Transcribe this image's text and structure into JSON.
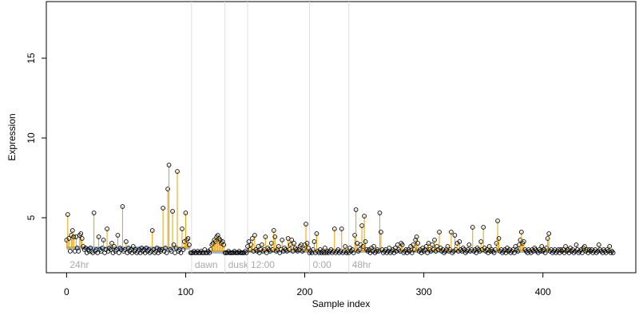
{
  "chart_data": {
    "type": "scatter",
    "x_label": "Sample index",
    "y_label": "Expression",
    "xlim": [
      -17,
      478
    ],
    "xticks": [
      0,
      100,
      200,
      300,
      400
    ],
    "ylim": [
      1.55,
      18.55
    ],
    "yticks": [
      5,
      10,
      15
    ],
    "color": "#000000",
    "stem_color": "#e69f00",
    "baseline_color": "#9ab7e0",
    "separator_color": "#dddddd",
    "regions": [
      {
        "start": 0,
        "label": "24hr"
      },
      {
        "start": 105,
        "label": "dawn"
      },
      {
        "start": 133,
        "label": "dusk"
      },
      {
        "start": 152,
        "label": "12:00"
      },
      {
        "start": 204,
        "label": "0:00"
      },
      {
        "start": 237,
        "label": "48hr"
      }
    ],
    "baselines": [
      {
        "start": 0,
        "end": 104,
        "value": 3.1
      },
      {
        "start": 105,
        "end": 132,
        "value": 2.85
      },
      {
        "start": 133,
        "end": 151,
        "value": 2.85
      },
      {
        "start": 152,
        "end": 203,
        "value": 2.9
      },
      {
        "start": 204,
        "end": 236,
        "value": 2.85
      },
      {
        "start": 237,
        "end": 459,
        "value": 2.9
      }
    ],
    "values": [
      3.6,
      5.2,
      3.7,
      2.9,
      3.9,
      4.2,
      3.8,
      2.9,
      3.8,
      3.1,
      2.9,
      3.9,
      4.0,
      3.7,
      3.2,
      3.0,
      3.1,
      2.8,
      3.0,
      2.9,
      3.1,
      2.9,
      2.8,
      5.3,
      2.9,
      3.0,
      2.8,
      3.8,
      3.0,
      2.9,
      3.1,
      3.6,
      2.8,
      3.0,
      4.3,
      2.9,
      3.1,
      3.0,
      3.4,
      2.8,
      3.2,
      2.9,
      3.0,
      3.9,
      2.8,
      3.1,
      3.0,
      5.7,
      2.9,
      3.0,
      3.5,
      2.8,
      3.1,
      2.9,
      3.0,
      2.8,
      3.2,
      2.9,
      3.0,
      2.8,
      2.9,
      3.0,
      2.8,
      3.1,
      2.9,
      3.0,
      2.8,
      3.1,
      2.9,
      3.0,
      2.8,
      2.9,
      4.2,
      3.0,
      2.8,
      2.9,
      3.1,
      2.8,
      3.0,
      2.9,
      3.0,
      5.6,
      2.9,
      3.1,
      2.8,
      6.8,
      8.3,
      3.0,
      2.9,
      5.4,
      3.3,
      2.8,
      3.1,
      7.9,
      2.9,
      3.0,
      2.8,
      4.3,
      3.0,
      3.5,
      5.3,
      3.6,
      3.7,
      3.3,
      2.8,
      2.8,
      2.8,
      2.9,
      2.8,
      2.8,
      2.9,
      2.8,
      2.8,
      2.9,
      2.8,
      2.8,
      3.0,
      2.8,
      2.8,
      2.9,
      2.8,
      3.0,
      3.3,
      3.4,
      3.6,
      3.5,
      3.8,
      3.9,
      3.7,
      3.6,
      3.4,
      3.5,
      3.3,
      2.8,
      2.8,
      2.8,
      2.9,
      2.8,
      2.8,
      2.8,
      2.8,
      2.9,
      2.8,
      2.8,
      2.8,
      2.9,
      2.8,
      2.8,
      2.8,
      2.8,
      2.9,
      2.8,
      3.2,
      3.5,
      3.0,
      3.3,
      3.7,
      2.9,
      3.9,
      3.0,
      2.9,
      3.2,
      2.8,
      3.0,
      3.3,
      2.9,
      3.0,
      3.8,
      2.8,
      3.1,
      3.0,
      2.9,
      3.4,
      3.0,
      4.2,
      3.8,
      2.9,
      3.0,
      3.2,
      2.8,
      3.0,
      3.6,
      2.9,
      3.1,
      3.0,
      2.9,
      3.7,
      3.0,
      3.3,
      3.6,
      2.9,
      3.4,
      3.1,
      3.0,
      2.9,
      3.0,
      3.2,
      3.3,
      2.9,
      3.0,
      3.3,
      4.6,
      3.4,
      3.1,
      2.8,
      2.9,
      2.8,
      3.0,
      3.5,
      2.8,
      4.0,
      2.9,
      2.8,
      3.0,
      2.8,
      2.9,
      2.8,
      3.1,
      2.8,
      2.9,
      2.8,
      2.9,
      3.0,
      2.8,
      2.9,
      4.3,
      2.8,
      2.9,
      3.0,
      2.8,
      2.9,
      4.3,
      2.8,
      2.9,
      3.2,
      2.8,
      2.9,
      2.8,
      3.1,
      2.9,
      3.0,
      2.8,
      3.9,
      5.5,
      3.4,
      2.9,
      3.0,
      3.3,
      4.5,
      3.2,
      5.1,
      3.5,
      3.0,
      2.9,
      3.0,
      2.8,
      3.1,
      2.9,
      3.2,
      2.8,
      2.9,
      3.0,
      2.9,
      5.3,
      4.1,
      3.0,
      2.8,
      2.9,
      3.0,
      2.8,
      2.9,
      3.1,
      2.8,
      2.9,
      3.0,
      2.8,
      3.1,
      2.9,
      3.3,
      3.0,
      2.9,
      3.4,
      3.3,
      2.8,
      2.9,
      3.0,
      2.8,
      3.0,
      2.9,
      3.2,
      2.8,
      3.3,
      3.0,
      3.6,
      3.8,
      3.4,
      2.9,
      3.0,
      2.8,
      3.1,
      2.9,
      3.0,
      3.2,
      2.8,
      3.4,
      3.0,
      2.9,
      3.3,
      3.0,
      3.6,
      2.9,
      3.2,
      3.0,
      4.1,
      3.1,
      2.9,
      3.0,
      2.8,
      2.9,
      3.0,
      3.2,
      2.9,
      3.0,
      4.1,
      2.8,
      2.9,
      3.9,
      3.0,
      3.4,
      2.9,
      3.5,
      3.0,
      2.9,
      3.1,
      3.0,
      2.8,
      2.9,
      3.0,
      3.3,
      2.9,
      3.0,
      4.4,
      2.9,
      3.0,
      2.8,
      3.1,
      3.0,
      2.9,
      3.5,
      3.0,
      4.4,
      3.1,
      2.9,
      3.0,
      2.8,
      3.2,
      2.9,
      3.0,
      2.9,
      2.8,
      3.0,
      3.4,
      4.8,
      3.7,
      2.9,
      3.0,
      2.8,
      2.9,
      3.0,
      2.8,
      3.1,
      2.9,
      3.0,
      2.8,
      2.9,
      3.0,
      2.8,
      3.2,
      3.0,
      2.9,
      3.3,
      3.6,
      4.1,
      3.4,
      3.5,
      3.0,
      2.9,
      2.8,
      3.0,
      2.9,
      2.8,
      3.0,
      2.9,
      3.1,
      3.0,
      2.9,
      2.8,
      3.0,
      2.9,
      3.2,
      2.9,
      3.0,
      2.8,
      3.1,
      3.7,
      4.0,
      2.9,
      3.0,
      2.8,
      2.9,
      3.0,
      2.8,
      2.9,
      3.0,
      2.8,
      3.0,
      2.9,
      3.0,
      2.8,
      3.2,
      2.9,
      3.0,
      2.8,
      3.1,
      2.9,
      3.0,
      2.8,
      2.9,
      3.3,
      3.0,
      2.8,
      2.9,
      3.0,
      2.8,
      3.1,
      3.2,
      2.9,
      3.0,
      2.8,
      3.0,
      2.9,
      3.0,
      2.8,
      2.9,
      3.0,
      2.8,
      2.9,
      3.3,
      3.0,
      2.9,
      2.8,
      3.0,
      2.9,
      2.8,
      3.0,
      2.9,
      3.2,
      2.8,
      2.9,
      2.8
    ]
  }
}
